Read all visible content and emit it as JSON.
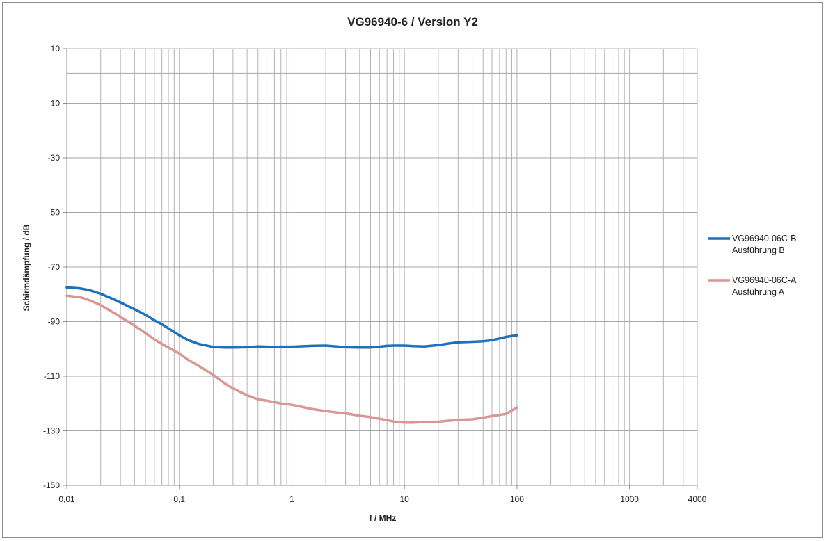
{
  "chart_data": {
    "type": "line",
    "title": "VG96940-6 / Version Y2",
    "xlabel": "f / MHz",
    "ylabel": "Schirmdämpfung / dB",
    "x_scale": "log",
    "xlim": [
      0.01,
      4000
    ],
    "ylim": [
      -150,
      10
    ],
    "x_tick_labels": [
      {
        "value": 0.01,
        "label": "0,01"
      },
      {
        "value": 0.1,
        "label": "0,1"
      },
      {
        "value": 1,
        "label": "1"
      },
      {
        "value": 10,
        "label": "10"
      },
      {
        "value": 100,
        "label": "100"
      },
      {
        "value": 1000,
        "label": "1000"
      },
      {
        "value": 4000,
        "label": "4000"
      }
    ],
    "y_ticks": [
      10,
      -10,
      -30,
      -50,
      -70,
      -90,
      -110,
      -130,
      -150
    ],
    "y_extra_gridline": 1,
    "grid": true,
    "legend_position": "right",
    "series": [
      {
        "name": "VG96940-06C-B",
        "name_line2": "Ausführung B",
        "color": "#1f6fbf",
        "x": [
          0.01,
          0.013,
          0.016,
          0.02,
          0.025,
          0.03,
          0.04,
          0.05,
          0.06,
          0.07,
          0.08,
          0.1,
          0.12,
          0.15,
          0.2,
          0.25,
          0.3,
          0.4,
          0.5,
          0.6,
          0.7,
          0.8,
          1,
          1.5,
          2,
          2.5,
          3,
          4,
          5,
          6,
          7,
          8,
          10,
          12,
          15,
          20,
          25,
          30,
          40,
          50,
          60,
          70,
          80,
          100
        ],
        "y": [
          -77.5,
          -77.8,
          -78.5,
          -79.8,
          -81.5,
          -83,
          -85.5,
          -87.5,
          -89.5,
          -91,
          -92.5,
          -95,
          -96.8,
          -98.2,
          -99.3,
          -99.5,
          -99.5,
          -99.4,
          -99.1,
          -99.2,
          -99.4,
          -99.2,
          -99.2,
          -98.9,
          -98.8,
          -99.1,
          -99.4,
          -99.5,
          -99.5,
          -99.2,
          -98.9,
          -98.8,
          -98.8,
          -99,
          -99.1,
          -98.6,
          -98,
          -97.6,
          -97.4,
          -97.2,
          -96.8,
          -96.2,
          -95.6,
          -95
        ]
      },
      {
        "name": "VG96940-06C-A",
        "name_line2": "Ausführung A",
        "color": "#d99694",
        "x": [
          0.01,
          0.013,
          0.016,
          0.02,
          0.025,
          0.03,
          0.04,
          0.05,
          0.06,
          0.07,
          0.08,
          0.1,
          0.12,
          0.15,
          0.2,
          0.25,
          0.3,
          0.4,
          0.5,
          0.6,
          0.7,
          0.8,
          1,
          1.5,
          2,
          2.5,
          3,
          4,
          5,
          6,
          7,
          8,
          10,
          12,
          15,
          20,
          25,
          30,
          40,
          50,
          60,
          70,
          80,
          100
        ],
        "y": [
          -80.5,
          -81,
          -82.2,
          -84,
          -86.3,
          -88.3,
          -91.5,
          -94.2,
          -96.5,
          -98.2,
          -99.5,
          -101.7,
          -104,
          -106.3,
          -109.5,
          -112.5,
          -114.5,
          -117,
          -118.5,
          -119,
          -119.5,
          -120,
          -120.5,
          -122,
          -122.8,
          -123.3,
          -123.6,
          -124.5,
          -125,
          -125.6,
          -126.1,
          -126.6,
          -127,
          -127,
          -126.8,
          -126.7,
          -126.3,
          -126,
          -125.8,
          -125.2,
          -124.6,
          -124.2,
          -123.8,
          -121.5
        ]
      }
    ]
  }
}
